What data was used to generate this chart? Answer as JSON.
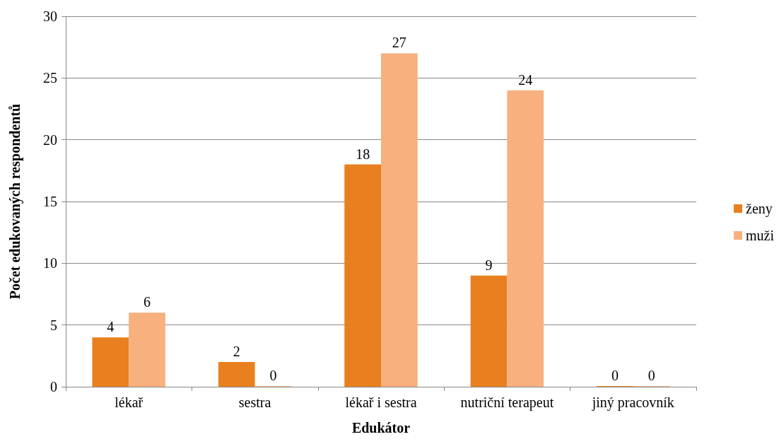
{
  "chart_data": {
    "type": "bar",
    "xlabel": "Edukátor",
    "ylabel": "Počet edukovaných respondentů",
    "categories": [
      "lékař",
      "sestra",
      "lékař i sestra",
      "nutriční terapeut",
      "jiný pracovník"
    ],
    "series": [
      {
        "name": "ženy",
        "color": "#e8801f",
        "values": [
          4,
          2,
          18,
          9,
          0
        ]
      },
      {
        "name": "muži",
        "color": "#f7b07e",
        "values": [
          6,
          0,
          27,
          24,
          0
        ]
      }
    ],
    "ylim": [
      0,
      30
    ],
    "yticks": [
      0,
      5,
      10,
      15,
      20,
      25,
      30
    ],
    "grid": "y",
    "legend": "right",
    "data_labels": true
  }
}
